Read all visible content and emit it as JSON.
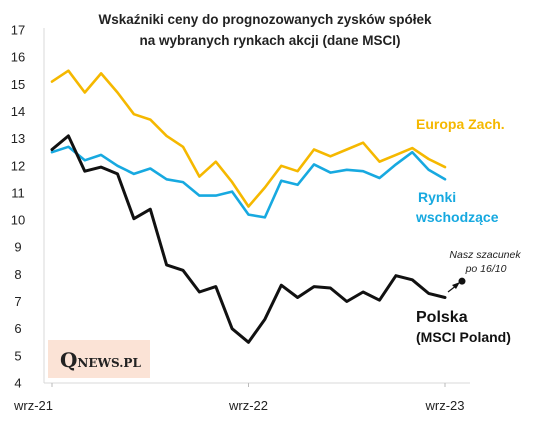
{
  "chart_data": {
    "type": "line",
    "title_lines": [
      "Wskaźniki ceny do prognozowanych  zysków spółek",
      "na wybranych rynkach akcji (dane MSCI)"
    ],
    "xlabel": "",
    "ylabel": "",
    "ylim": [
      4,
      17
    ],
    "yticks": [
      "4",
      "5",
      "6",
      "7",
      "8",
      "9",
      "10",
      "11",
      "12",
      "13",
      "14",
      "15",
      "16",
      "17"
    ],
    "x_tick_labels": [
      "wrz-21",
      "wrz-22",
      "wrz-23"
    ],
    "grid": false,
    "legend": "labels placed at line ends on the right",
    "series": [
      {
        "name": "Europa Zach.",
        "color": "#f5b800",
        "values": [
          15.1,
          15.5,
          14.7,
          15.4,
          14.7,
          13.9,
          13.7,
          13.1,
          12.7,
          11.6,
          12.15,
          11.4,
          10.5,
          11.2,
          12.0,
          11.8,
          12.6,
          12.35,
          12.6,
          12.85,
          12.15,
          12.4,
          12.65,
          12.25,
          11.95
        ]
      },
      {
        "name": "Rynki wschodzące",
        "label_lines": [
          "Rynki",
          "wschodzące"
        ],
        "color": "#17a9e0",
        "values": [
          12.5,
          12.7,
          12.2,
          12.4,
          12.0,
          11.7,
          11.9,
          11.5,
          11.4,
          10.9,
          10.9,
          11.05,
          10.2,
          10.1,
          11.45,
          11.3,
          12.05,
          11.75,
          11.85,
          11.8,
          11.55,
          12.05,
          12.5,
          11.85,
          11.5
        ]
      },
      {
        "name": "Polska (MSCI Poland)",
        "label_lines": [
          "Polska",
          "(MSCI Poland)"
        ],
        "color": "#111111",
        "values": [
          12.6,
          13.1,
          11.8,
          11.95,
          11.7,
          10.05,
          10.4,
          8.35,
          8.15,
          7.35,
          7.55,
          6.0,
          5.5,
          6.35,
          7.6,
          7.15,
          7.55,
          7.5,
          7.0,
          7.35,
          7.05,
          7.95,
          7.8,
          7.3,
          7.15
        ]
      }
    ],
    "annotation": {
      "lines": [
        "Nasz szacunek",
        "po 16/10"
      ],
      "value": 7.75
    }
  },
  "logo": {
    "text": "QNEWS.PL"
  }
}
